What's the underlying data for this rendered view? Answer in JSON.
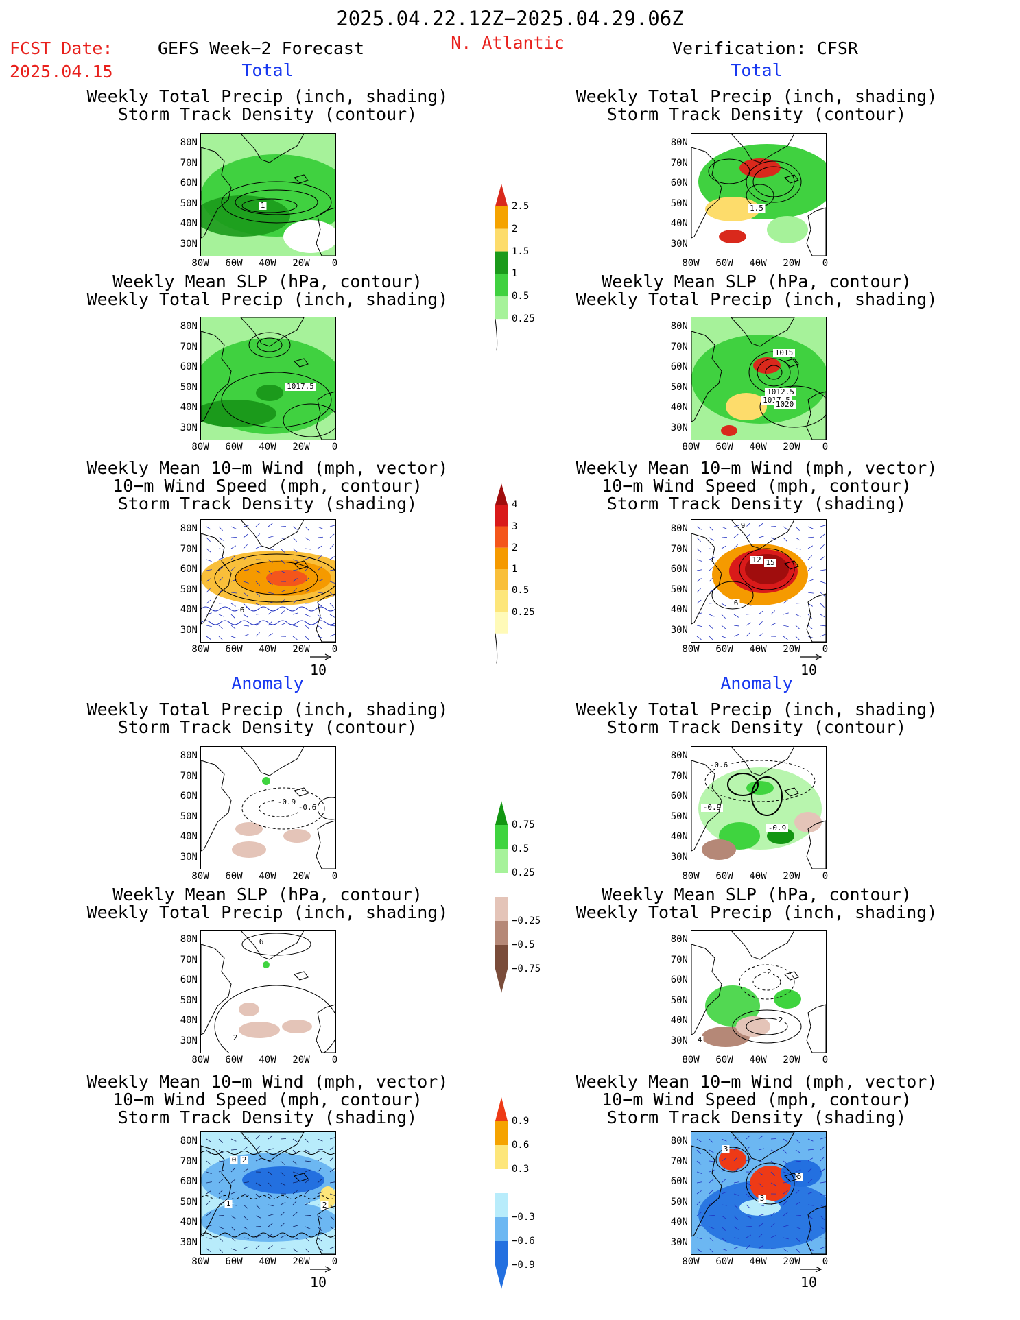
{
  "header": {
    "period": "2025.04.22.12Z−2025.04.29.06Z",
    "fcst_label": "FCST Date:",
    "fcst_date": "2025.04.15",
    "left_title": "GEFS Week−2 Forecast",
    "region": "N. Atlantic",
    "right_title": "Verification: CFSR"
  },
  "sections": {
    "total": "Total",
    "anomaly": "Anomaly"
  },
  "panel_titles": {
    "precip_track": [
      "Weekly Total Precip (inch, shading)",
      "Storm Track Density (contour)"
    ],
    "slp_precip": [
      "Weekly Mean SLP (hPa, contour)",
      "Weekly Total Precip (inch, shading)"
    ],
    "wind_track": [
      "Weekly Mean 10−m Wind (mph, vector)",
      "10−m Wind Speed (mph, contour)",
      "Storm Track Density (shading)"
    ]
  },
  "axes": {
    "lat_ticks": [
      "80N",
      "70N",
      "60N",
      "50N",
      "40N",
      "30N"
    ],
    "lon_ticks": [
      "80W",
      "60W",
      "40W",
      "20W",
      "0"
    ]
  },
  "vector_ref": "10",
  "contour_labels": {
    "l_total_precip": "1",
    "r_total_precip": "1.5",
    "l_total_slp": "1017.5",
    "r_total_slp": [
      "1015",
      "1012.5",
      "1017.5",
      "1020"
    ],
    "l_total_wind": "6",
    "r_total_wind": [
      "9",
      "12",
      "15",
      "6"
    ],
    "l_anom_precip": [
      "-0.9",
      "-0.6"
    ],
    "r_anom_precip": [
      "-0.6",
      "-0.9",
      "-0.9"
    ],
    "l_anom_slp": [
      "6",
      "2"
    ],
    "r_anom_slp": [
      "-2",
      "2",
      "4"
    ],
    "l_anom_wind": [
      "0",
      "2",
      "1",
      "2"
    ],
    "r_anom_wind": [
      "3",
      "6",
      "3"
    ]
  },
  "colorbars": {
    "precip_total": {
      "labels": [
        "2.5",
        "2",
        "1.5",
        "1",
        "0.5",
        "0.25"
      ],
      "colors": [
        "#d9291c",
        "#f5a300",
        "#fddc6b",
        "#1b9a1b",
        "#40d140",
        "#a6f29a"
      ]
    },
    "track_total": {
      "labels": [
        "4",
        "3",
        "2",
        "1",
        "0.5",
        "0.25"
      ],
      "colors": [
        "#a00d0d",
        "#d91a1a",
        "#f4561b",
        "#f59a00",
        "#f9bf3a",
        "#fde67a",
        "#fffab8"
      ]
    },
    "precip_anom": {
      "labels": [
        "0.75",
        "0.5",
        "0.25",
        "−0.25",
        "−0.5",
        "−0.75"
      ],
      "colors": [
        "#129612",
        "#3fd43f",
        "#a6f29a",
        "#ffffff",
        "#e4c4b8",
        "#b58877",
        "#7a4c3a"
      ]
    },
    "track_anom": {
      "labels": [
        "0.9",
        "0.6",
        "0.3",
        "−0.3",
        "−0.6",
        "−0.9"
      ],
      "colors": [
        "#ee3a16",
        "#f5a300",
        "#fde67a",
        "#ffffff",
        "#b8ecfb",
        "#6cb7f2",
        "#2370e0"
      ]
    }
  }
}
